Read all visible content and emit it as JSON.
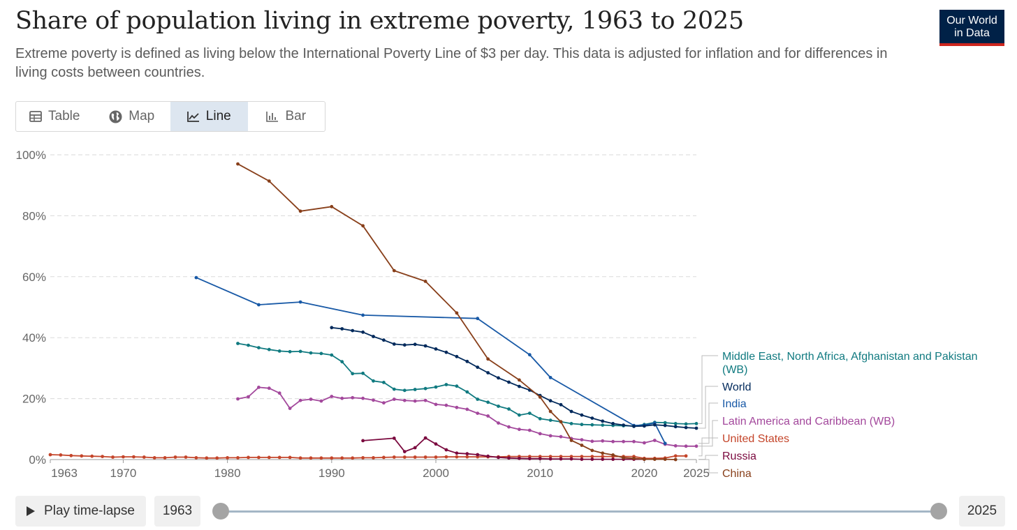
{
  "header": {
    "title": "Share of population living in extreme poverty, 1963 to 2025",
    "subtitle": "Extreme poverty is defined as living below the International Poverty Line of $3 per day. This data is adjusted for inflation and for differences in living costs between countries.",
    "logo_line1": "Our World",
    "logo_line2": "in Data"
  },
  "tabs": [
    {
      "label": "Table",
      "icon": "table-icon",
      "active": false
    },
    {
      "label": "Map",
      "icon": "globe-icon",
      "active": false
    },
    {
      "label": "Line",
      "icon": "line-chart-icon",
      "active": true
    },
    {
      "label": "Bar",
      "icon": "bar-chart-icon",
      "active": false
    }
  ],
  "timeline": {
    "play_label": "Play time-lapse",
    "start_year": "1963",
    "end_year": "2025"
  },
  "colors": {
    "World": "#00295b",
    "India": "#1859a6",
    "China": "#883f1a",
    "Middle East, North Africa, Afghanistan and Pakistan (WB)": "#107a80",
    "Latin America and Caribbean (WB)": "#a3489c",
    "United States": "#c4452a",
    "Russia": "#7b0a3f"
  },
  "chart_data": {
    "type": "line",
    "xlim": [
      1963,
      2025
    ],
    "ylim": [
      0,
      100
    ],
    "y_unit": "%",
    "grid": "horizontal dashed",
    "legend_placement": "right, labels at line ends",
    "yticks": [
      "0%",
      "20%",
      "40%",
      "60%",
      "80%",
      "100%"
    ],
    "xticks": [
      1963,
      1970,
      1980,
      1990,
      2000,
      2010,
      2020,
      2025
    ],
    "series": [
      {
        "name": "Middle East, North Africa, Afghanistan and Pakistan (WB)",
        "label_lines": [
          "Middle East, North Africa, Afghanistan and Pakistan",
          "(WB)"
        ],
        "end_value": 11.8,
        "points": [
          [
            1981,
            38.1
          ],
          [
            1982,
            37.5
          ],
          [
            1983,
            36.7
          ],
          [
            1984,
            36.1
          ],
          [
            1985,
            35.6
          ],
          [
            1986,
            35.4
          ],
          [
            1987,
            35.5
          ],
          [
            1988,
            35.0
          ],
          [
            1989,
            34.8
          ],
          [
            1990,
            34.3
          ],
          [
            1991,
            32.1
          ],
          [
            1992,
            28.2
          ],
          [
            1993,
            28.3
          ],
          [
            1994,
            25.8
          ],
          [
            1995,
            25.3
          ],
          [
            1996,
            23.1
          ],
          [
            1997,
            22.7
          ],
          [
            1998,
            23.0
          ],
          [
            1999,
            23.3
          ],
          [
            2000,
            23.8
          ],
          [
            2001,
            24.6
          ],
          [
            2002,
            24.1
          ],
          [
            2003,
            22.2
          ],
          [
            2004,
            19.8
          ],
          [
            2005,
            18.8
          ],
          [
            2006,
            17.5
          ],
          [
            2007,
            16.6
          ],
          [
            2008,
            14.6
          ],
          [
            2009,
            15.2
          ],
          [
            2010,
            13.4
          ],
          [
            2011,
            12.9
          ],
          [
            2012,
            12.4
          ],
          [
            2013,
            11.8
          ],
          [
            2014,
            11.5
          ],
          [
            2015,
            11.4
          ],
          [
            2016,
            11.3
          ],
          [
            2017,
            11.2
          ],
          [
            2018,
            11.1
          ],
          [
            2019,
            11.0
          ],
          [
            2020,
            11.5
          ],
          [
            2021,
            12.2
          ],
          [
            2022,
            12.1
          ],
          [
            2023,
            11.8
          ],
          [
            2024,
            11.7
          ],
          [
            2025,
            11.8
          ]
        ]
      },
      {
        "name": "World",
        "label_lines": [
          "World"
        ],
        "end_value": 10.3,
        "points": [
          [
            1990,
            43.3
          ],
          [
            1991,
            42.9
          ],
          [
            1992,
            42.3
          ],
          [
            1993,
            41.8
          ],
          [
            1994,
            40.4
          ],
          [
            1995,
            39.2
          ],
          [
            1996,
            37.9
          ],
          [
            1997,
            37.6
          ],
          [
            1998,
            37.8
          ],
          [
            1999,
            37.3
          ],
          [
            2000,
            36.3
          ],
          [
            2001,
            35.2
          ],
          [
            2002,
            33.8
          ],
          [
            2003,
            32.2
          ],
          [
            2004,
            30.3
          ],
          [
            2005,
            28.5
          ],
          [
            2006,
            26.8
          ],
          [
            2007,
            25.4
          ],
          [
            2008,
            24.0
          ],
          [
            2009,
            22.8
          ],
          [
            2010,
            21.0
          ],
          [
            2011,
            19.3
          ],
          [
            2012,
            18.0
          ],
          [
            2013,
            15.8
          ],
          [
            2014,
            14.6
          ],
          [
            2015,
            13.6
          ],
          [
            2016,
            12.6
          ],
          [
            2017,
            11.8
          ],
          [
            2018,
            11.3
          ],
          [
            2019,
            10.9
          ],
          [
            2020,
            11.0
          ],
          [
            2021,
            11.4
          ],
          [
            2022,
            11.2
          ],
          [
            2023,
            10.8
          ],
          [
            2024,
            10.5
          ],
          [
            2025,
            10.3
          ]
        ]
      },
      {
        "name": "India",
        "label_lines": [
          "India"
        ],
        "end_value": 5.3,
        "points": [
          [
            1977,
            59.7
          ],
          [
            1983,
            50.8
          ],
          [
            1987,
            51.7
          ],
          [
            1993,
            47.4
          ],
          [
            2004,
            46.3
          ],
          [
            2009,
            34.4
          ],
          [
            2011,
            26.9
          ],
          [
            2019,
            11.2
          ],
          [
            2020,
            11.3
          ],
          [
            2021,
            12.0
          ],
          [
            2022,
            5.3
          ]
        ]
      },
      {
        "name": "Latin America and Caribbean (WB)",
        "label_lines": [
          "Latin America and Caribbean (WB)"
        ],
        "end_value": 4.4,
        "points": [
          [
            1981,
            19.9
          ],
          [
            1982,
            20.6
          ],
          [
            1983,
            23.7
          ],
          [
            1984,
            23.4
          ],
          [
            1985,
            21.8
          ],
          [
            1986,
            16.8
          ],
          [
            1987,
            19.4
          ],
          [
            1988,
            19.8
          ],
          [
            1989,
            19.2
          ],
          [
            1990,
            20.7
          ],
          [
            1991,
            20.1
          ],
          [
            1992,
            20.3
          ],
          [
            1993,
            20.1
          ],
          [
            1994,
            19.5
          ],
          [
            1995,
            18.6
          ],
          [
            1996,
            19.8
          ],
          [
            1997,
            19.4
          ],
          [
            1998,
            19.2
          ],
          [
            1999,
            19.4
          ],
          [
            2000,
            18.1
          ],
          [
            2001,
            17.8
          ],
          [
            2002,
            17.1
          ],
          [
            2003,
            16.5
          ],
          [
            2004,
            15.2
          ],
          [
            2005,
            14.3
          ],
          [
            2006,
            12.0
          ],
          [
            2007,
            10.7
          ],
          [
            2008,
            9.9
          ],
          [
            2009,
            9.6
          ],
          [
            2010,
            8.5
          ],
          [
            2011,
            7.8
          ],
          [
            2012,
            7.5
          ],
          [
            2013,
            6.9
          ],
          [
            2014,
            6.5
          ],
          [
            2015,
            6.0
          ],
          [
            2016,
            6.1
          ],
          [
            2017,
            5.9
          ],
          [
            2018,
            5.9
          ],
          [
            2019,
            5.9
          ],
          [
            2020,
            5.5
          ],
          [
            2021,
            6.3
          ],
          [
            2022,
            5.0
          ],
          [
            2023,
            4.5
          ],
          [
            2024,
            4.4
          ],
          [
            2025,
            4.4
          ]
        ]
      },
      {
        "name": "United States",
        "label_lines": [
          "United States"
        ],
        "end_value": 1.2,
        "points": [
          [
            1963,
            1.6
          ],
          [
            1964,
            1.5
          ],
          [
            1965,
            1.3
          ],
          [
            1966,
            1.2
          ],
          [
            1967,
            1.1
          ],
          [
            1968,
            1.0
          ],
          [
            1969,
            0.8
          ],
          [
            1970,
            0.9
          ],
          [
            1971,
            0.9
          ],
          [
            1972,
            0.8
          ],
          [
            1973,
            0.6
          ],
          [
            1974,
            0.6
          ],
          [
            1975,
            0.8
          ],
          [
            1976,
            0.8
          ],
          [
            1977,
            0.6
          ],
          [
            1978,
            0.5
          ],
          [
            1979,
            0.5
          ],
          [
            1980,
            0.6
          ],
          [
            1981,
            0.6
          ],
          [
            1982,
            0.7
          ],
          [
            1983,
            0.7
          ],
          [
            1984,
            0.7
          ],
          [
            1985,
            0.7
          ],
          [
            1986,
            0.7
          ],
          [
            1987,
            0.5
          ],
          [
            1988,
            0.5
          ],
          [
            1989,
            0.5
          ],
          [
            1990,
            0.5
          ],
          [
            1991,
            0.5
          ],
          [
            1992,
            0.5
          ],
          [
            1993,
            0.6
          ],
          [
            1994,
            0.6
          ],
          [
            1995,
            0.7
          ],
          [
            1996,
            0.8
          ],
          [
            1997,
            0.8
          ],
          [
            1998,
            0.8
          ],
          [
            1999,
            0.8
          ],
          [
            2000,
            0.8
          ],
          [
            2001,
            0.9
          ],
          [
            2002,
            0.9
          ],
          [
            2003,
            0.9
          ],
          [
            2004,
            0.9
          ],
          [
            2005,
            0.9
          ],
          [
            2006,
            0.9
          ],
          [
            2007,
            1.0
          ],
          [
            2008,
            1.0
          ],
          [
            2009,
            1.0
          ],
          [
            2010,
            1.0
          ],
          [
            2011,
            1.0
          ],
          [
            2012,
            1.0
          ],
          [
            2013,
            1.0
          ],
          [
            2014,
            1.0
          ],
          [
            2015,
            1.0
          ],
          [
            2016,
            1.0
          ],
          [
            2017,
            1.0
          ],
          [
            2018,
            1.0
          ],
          [
            2019,
            1.0
          ],
          [
            2020,
            0.4
          ],
          [
            2021,
            0.4
          ],
          [
            2022,
            0.5
          ],
          [
            2023,
            1.2
          ],
          [
            2024,
            1.2
          ]
        ]
      },
      {
        "name": "Russia",
        "label_lines": [
          "Russia"
        ],
        "end_value": 0.1,
        "points": [
          [
            1993,
            6.2
          ],
          [
            1996,
            7.0
          ],
          [
            1997,
            2.6
          ],
          [
            1998,
            3.9
          ],
          [
            1999,
            7.1
          ],
          [
            2000,
            5.1
          ],
          [
            2001,
            3.2
          ],
          [
            2002,
            2.1
          ],
          [
            2003,
            1.9
          ],
          [
            2004,
            1.6
          ],
          [
            2005,
            1.1
          ],
          [
            2006,
            0.7
          ],
          [
            2007,
            0.5
          ],
          [
            2008,
            0.4
          ],
          [
            2009,
            0.3
          ],
          [
            2010,
            0.3
          ],
          [
            2011,
            0.2
          ],
          [
            2012,
            0.2
          ],
          [
            2013,
            0.2
          ],
          [
            2014,
            0.1
          ],
          [
            2015,
            0.1
          ],
          [
            2016,
            0.1
          ],
          [
            2017,
            0.1
          ],
          [
            2018,
            0.1
          ],
          [
            2019,
            0.1
          ],
          [
            2020,
            0.1
          ]
        ]
      },
      {
        "name": "China",
        "label_lines": [
          "China"
        ],
        "end_value": 0.0,
        "points": [
          [
            1981,
            97.0
          ],
          [
            1984,
            91.4
          ],
          [
            1987,
            81.5
          ],
          [
            1990,
            83.0
          ],
          [
            1993,
            76.7
          ],
          [
            1996,
            62.0
          ],
          [
            1999,
            58.5
          ],
          [
            2002,
            48.1
          ],
          [
            2005,
            33.0
          ],
          [
            2008,
            26.1
          ],
          [
            2010,
            20.5
          ],
          [
            2011,
            15.8
          ],
          [
            2012,
            12.4
          ],
          [
            2013,
            6.3
          ],
          [
            2014,
            4.7
          ],
          [
            2015,
            3.0
          ],
          [
            2016,
            2.1
          ],
          [
            2017,
            1.5
          ],
          [
            2018,
            0.6
          ],
          [
            2019,
            0.4
          ],
          [
            2020,
            0.1
          ],
          [
            2021,
            0.1
          ],
          [
            2022,
            0.1
          ],
          [
            2023,
            0.0
          ]
        ]
      }
    ]
  }
}
